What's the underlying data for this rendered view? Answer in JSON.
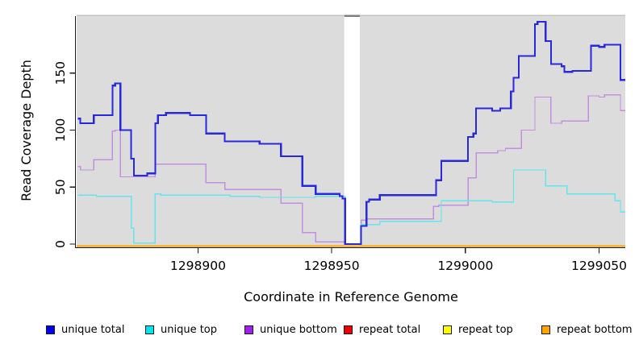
{
  "figure": {
    "background": "#FFFFFF",
    "plot_background": "#DCDCDC",
    "top_border_color": "#C2C2C2",
    "axis_color": "#1A1A1A",
    "text_color": "#000000",
    "gap_region": {
      "x_start": 1298954.7,
      "x_end": 1298960.5,
      "color": "#FFFFFF",
      "top_cap_color": "#7E7E7E"
    }
  },
  "chart_data": {
    "type": "line",
    "step": true,
    "title": "",
    "xlabel": "Coordinate in Reference Genome",
    "ylabel": "Read Coverage Depth",
    "xlim": [
      1298854.6,
      1299059.8
    ],
    "ylim": [
      0,
      200
    ],
    "x_ticks": [
      1298900,
      1298950,
      1299000,
      1299050
    ],
    "x_tick_labels": [
      "1298900",
      "1298950",
      "1299000",
      "1299050"
    ],
    "y_ticks": [
      0,
      50,
      100,
      150
    ],
    "y_tick_labels": [
      "0",
      "50",
      "100",
      "150"
    ],
    "grid": false,
    "legend_position": "bottom",
    "series": [
      {
        "id": "unique-total",
        "name": "unique total",
        "line_color": "#2828DC",
        "legend_color": "#0000EE",
        "line_width": 2.2,
        "points": [
          [
            1298855,
            110
          ],
          [
            1298856,
            106
          ],
          [
            1298861,
            113
          ],
          [
            1298868,
            139
          ],
          [
            1298869,
            141
          ],
          [
            1298871,
            100
          ],
          [
            1298875,
            75
          ],
          [
            1298876,
            60
          ],
          [
            1298881,
            62
          ],
          [
            1298884,
            106
          ],
          [
            1298885,
            113
          ],
          [
            1298888,
            115
          ],
          [
            1298897,
            113
          ],
          [
            1298903,
            97
          ],
          [
            1298910,
            90
          ],
          [
            1298923,
            88
          ],
          [
            1298931,
            77
          ],
          [
            1298939,
            51
          ],
          [
            1298944,
            44
          ],
          [
            1298953,
            42
          ],
          [
            1298954,
            40
          ],
          [
            1298955,
            0
          ],
          [
            1298961,
            16
          ],
          [
            1298963,
            37
          ],
          [
            1298964,
            39
          ],
          [
            1298968,
            43
          ],
          [
            1298989,
            56
          ],
          [
            1298991,
            73
          ],
          [
            1299001,
            94
          ],
          [
            1299003,
            97
          ],
          [
            1299004,
            119
          ],
          [
            1299010,
            117
          ],
          [
            1299013,
            119
          ],
          [
            1299017,
            134
          ],
          [
            1299018,
            146
          ],
          [
            1299020,
            165
          ],
          [
            1299026,
            193
          ],
          [
            1299027,
            195
          ],
          [
            1299030,
            178
          ],
          [
            1299032,
            158
          ],
          [
            1299036,
            156
          ],
          [
            1299037,
            151
          ],
          [
            1299040,
            152
          ],
          [
            1299047,
            174
          ],
          [
            1299050,
            173
          ],
          [
            1299052,
            175
          ],
          [
            1299058,
            144
          ]
        ]
      },
      {
        "id": "unique-top",
        "name": "unique top",
        "line_color": "#63E5EE",
        "legend_color": "#00E5EE",
        "line_width": 1.4,
        "points": [
          [
            1298855,
            43
          ],
          [
            1298862,
            42
          ],
          [
            1298875,
            14
          ],
          [
            1298876,
            1
          ],
          [
            1298884,
            44
          ],
          [
            1298886,
            43
          ],
          [
            1298912,
            42
          ],
          [
            1298923,
            41
          ],
          [
            1298944,
            42
          ],
          [
            1298955,
            0
          ],
          [
            1298961,
            17
          ],
          [
            1298968,
            20
          ],
          [
            1298991,
            38
          ],
          [
            1299010,
            37
          ],
          [
            1299018,
            65
          ],
          [
            1299030,
            51
          ],
          [
            1299038,
            44
          ],
          [
            1299056,
            38
          ],
          [
            1299058,
            28
          ]
        ]
      },
      {
        "id": "unique-bottom",
        "name": "unique bottom",
        "line_color": "#C18FDE",
        "legend_color": "#A020F0",
        "line_width": 1.4,
        "points": [
          [
            1298855,
            68
          ],
          [
            1298856,
            65
          ],
          [
            1298861,
            74
          ],
          [
            1298868,
            99
          ],
          [
            1298869,
            100
          ],
          [
            1298871,
            59
          ],
          [
            1298884,
            70
          ],
          [
            1298903,
            54
          ],
          [
            1298910,
            48
          ],
          [
            1298931,
            36
          ],
          [
            1298939,
            10
          ],
          [
            1298944,
            2
          ],
          [
            1298955,
            0
          ],
          [
            1298961,
            21
          ],
          [
            1298963,
            22
          ],
          [
            1298988,
            33
          ],
          [
            1298990,
            34
          ],
          [
            1299001,
            58
          ],
          [
            1299004,
            80
          ],
          [
            1299012,
            82
          ],
          [
            1299015,
            84
          ],
          [
            1299021,
            100
          ],
          [
            1299026,
            129
          ],
          [
            1299032,
            106
          ],
          [
            1299036,
            108
          ],
          [
            1299046,
            130
          ],
          [
            1299050,
            129
          ],
          [
            1299052,
            131
          ],
          [
            1299058,
            117
          ]
        ]
      },
      {
        "id": "repeat-total",
        "name": "repeat total",
        "line_color": "#DD0000",
        "legend_color": "#EE0000",
        "line_width": 1.4,
        "points": [
          [
            1298854.6,
            0
          ],
          [
            1299059.8,
            0
          ]
        ]
      },
      {
        "id": "repeat-top",
        "name": "repeat top",
        "line_color": "#FFFF00",
        "legend_color": "#FFFF00",
        "line_width": 1.4,
        "points": [
          [
            1298854.6,
            0
          ],
          [
            1299059.8,
            0
          ]
        ]
      },
      {
        "id": "repeat-bottom",
        "name": "repeat bottom",
        "line_color": "#FFA500",
        "legend_color": "#FFA500",
        "line_width": 2,
        "points": [
          [
            1298854.6,
            0
          ],
          [
            1299059.8,
            0
          ]
        ]
      }
    ]
  }
}
